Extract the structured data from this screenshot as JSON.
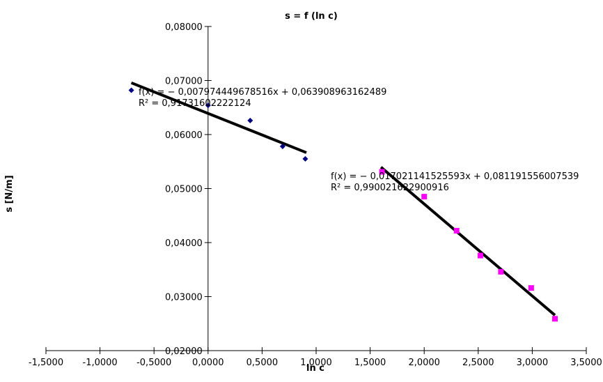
{
  "chart_data": {
    "type": "scatter",
    "title": "s = f (ln c)",
    "xlabel": "ln c",
    "ylabel": "s [N/m]",
    "xlim": [
      -1.5,
      3.5
    ],
    "ylim": [
      0.02,
      0.08
    ],
    "x_ticks": [
      "-1,5000",
      "-1,0000",
      "-0,5000",
      "0,0000",
      "0,5000",
      "1,0000",
      "1,5000",
      "2,0000",
      "2,5000",
      "3,0000",
      "3,5000"
    ],
    "y_ticks": [
      "0,02000",
      "0,03000",
      "0,04000",
      "0,05000",
      "0,06000",
      "0,07000",
      "0,08000"
    ],
    "grid": false,
    "legend": "none",
    "series": [
      {
        "color": "#000080",
        "marker": "diamond",
        "points": [
          {
            "x": -0.71,
            "y": 0.0682
          },
          {
            "x": 0.0,
            "y": 0.0654
          },
          {
            "x": 0.39,
            "y": 0.0626
          },
          {
            "x": 0.69,
            "y": 0.0578
          },
          {
            "x": 0.9,
            "y": 0.0555
          }
        ],
        "trendline": {
          "slope": -0.007974449678516,
          "intercept": 0.063908963162489,
          "x_range": [
            -0.71,
            0.91
          ]
        }
      },
      {
        "color": "#ff00ff",
        "marker": "square",
        "points": [
          {
            "x": 1.61,
            "y": 0.0531
          },
          {
            "x": 2.0,
            "y": 0.0485
          },
          {
            "x": 2.3,
            "y": 0.0422
          },
          {
            "x": 2.52,
            "y": 0.0376
          },
          {
            "x": 2.71,
            "y": 0.0346
          },
          {
            "x": 2.99,
            "y": 0.0316
          },
          {
            "x": 3.21,
            "y": 0.0259
          }
        ],
        "trendline": {
          "slope": -0.017021141525593,
          "intercept": 0.081191556007539,
          "x_range": [
            1.6,
            3.21
          ]
        }
      }
    ],
    "annotations": [
      {
        "line1": "f(x) = − 0,007974449678516x + 0,063908963162489",
        "line2": "R² = 0,917316022221​24"
      },
      {
        "line1": "f(x) = − 0,017021141525593x + 0,081191556007539",
        "line2": "R² = 0,990021622900916"
      }
    ]
  }
}
